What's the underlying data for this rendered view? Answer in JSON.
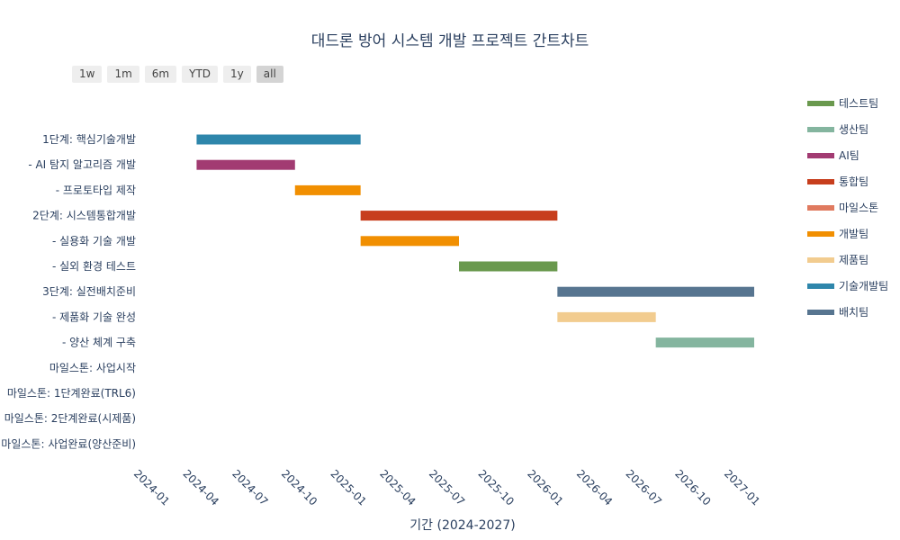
{
  "range_selector": {
    "buttons": [
      "1w",
      "1m",
      "6m",
      "YTD",
      "1y",
      "all"
    ],
    "active": "all"
  },
  "chart_data": {
    "type": "gantt",
    "title": "대드론 방어 시스템 개발 프로젝트 간트차트",
    "xlabel": "기간 (2024-2027)",
    "ylabel": "",
    "x_range": [
      "2024-01",
      "2027-01"
    ],
    "x_ticks": [
      "2024-01",
      "2024-04",
      "2024-07",
      "2024-10",
      "2025-01",
      "2025-04",
      "2025-07",
      "2025-10",
      "2026-01",
      "2026-04",
      "2026-07",
      "2026-10",
      "2027-01"
    ],
    "legend_position": "right",
    "tasks": [
      {
        "label": "1단계: 핵심기술개발",
        "start": "2024-03",
        "end": "2025-01",
        "team": "기술개발팀"
      },
      {
        "label": "- AI 탐지 알고리즘 개발",
        "start": "2024-03",
        "end": "2024-09",
        "team": "AI팀"
      },
      {
        "label": "- 프로토타입 제작",
        "start": "2024-09",
        "end": "2025-01",
        "team": "개발팀"
      },
      {
        "label": "2단계: 시스템통합개발",
        "start": "2025-01",
        "end": "2026-01",
        "team": "통합팀"
      },
      {
        "label": "- 실용화 기술 개발",
        "start": "2025-01",
        "end": "2025-07",
        "team": "개발팀"
      },
      {
        "label": "- 실외 환경 테스트",
        "start": "2025-07",
        "end": "2026-01",
        "team": "테스트팀"
      },
      {
        "label": "3단계: 실전배치준비",
        "start": "2026-01",
        "end": "2027-01",
        "team": "배치팀"
      },
      {
        "label": "- 제품화 기술 완성",
        "start": "2026-01",
        "end": "2026-07",
        "team": "제품팀"
      },
      {
        "label": "- 양산 체계 구축",
        "start": "2026-07",
        "end": "2027-01",
        "team": "생산팀"
      },
      {
        "label": "마일스톤: 사업시작",
        "start": null,
        "end": null,
        "team": "마일스톤"
      },
      {
        "label": "마일스톤: 1단계완료(TRL6)",
        "start": null,
        "end": null,
        "team": "마일스톤"
      },
      {
        "label": "마일스톤: 2단계완료(시제품)",
        "start": null,
        "end": null,
        "team": "마일스톤"
      },
      {
        "label": "마일스톤: 사업완료(양산준비)",
        "start": null,
        "end": null,
        "team": "마일스톤"
      }
    ],
    "legend": [
      {
        "name": "테스트팀",
        "color": "#6a994e"
      },
      {
        "name": "생산팀",
        "color": "#84b59f"
      },
      {
        "name": "AI팀",
        "color": "#a23b72"
      },
      {
        "name": "통합팀",
        "color": "#c73e1d"
      },
      {
        "name": "마일스톤",
        "color": "#e07a5f"
      },
      {
        "name": "개발팀",
        "color": "#f18f01"
      },
      {
        "name": "제품팀",
        "color": "#f2cc8f"
      },
      {
        "name": "기술개발팀",
        "color": "#2e86ab"
      },
      {
        "name": "배치팀",
        "color": "#577590"
      }
    ]
  }
}
